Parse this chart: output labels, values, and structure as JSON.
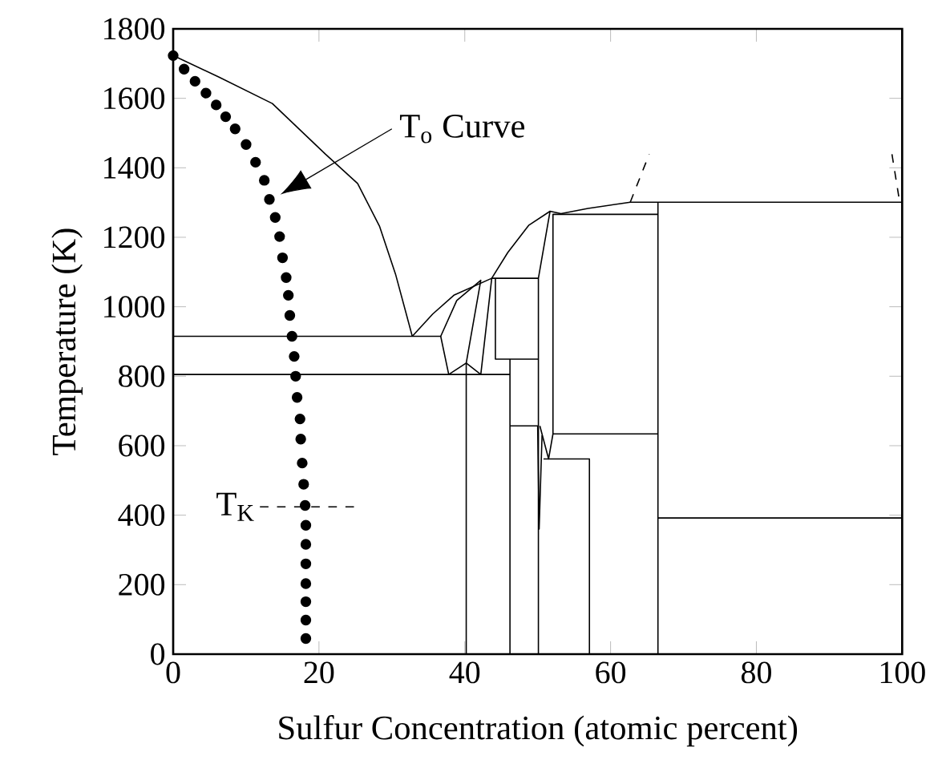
{
  "chart_data": {
    "type": "line",
    "xlabel": "Sulfur Concentration (atomic percent)",
    "ylabel": "Temperature (K)",
    "xlim": [
      0,
      100
    ],
    "ylim": [
      0,
      1800
    ],
    "xticks": [
      0,
      20,
      40,
      60,
      80,
      100
    ],
    "yticks": [
      0,
      200,
      400,
      600,
      800,
      1000,
      1200,
      1400,
      1600,
      1800
    ],
    "grid": false,
    "marker": "none",
    "line_style": "solid",
    "annotations": [
      "T$_{o}$ Curve",
      {
        "text": "T$_{K}$",
        "x": 11.9,
        "y": 424
      }
    ],
    "series": [
      {
        "color": "#000000",
        "x": [
          0,
          6.3,
          13.6,
          20.9,
          25.3,
          28.3,
          30.5,
          32.8
        ],
        "values": [
          1723,
          1661,
          1585,
          1439,
          1355,
          1232,
          1094,
          915
        ]
      },
      {
        "color": "#000000",
        "x": [
          0,
          36.7,
          37.8,
          40.2,
          42.2,
          43.7,
          45.9,
          48.8,
          51.7,
          53.2,
          56.9,
          62.7,
          100
        ],
        "values": [
          915,
          915,
          805,
          838,
          805,
          1082,
          1156,
          1235,
          1275,
          1268,
          1283,
          1301,
          1301
        ]
      },
      {
        "color": "#000000",
        "x": [
          0,
          46.2
        ],
        "values": [
          805,
          805
        ]
      },
      {
        "color": "#000000",
        "x": [
          32.8,
          35.6,
          38.5,
          43.7,
          50.1
        ],
        "values": [
          915,
          979,
          1033,
          1082,
          1082
        ]
      },
      {
        "color": "#000000",
        "x": [
          36.7,
          38.9,
          42.2,
          40.2,
          40.2
        ],
        "values": [
          915,
          1018,
          1076,
          838,
          0
        ]
      },
      {
        "color": "#000000",
        "x": [
          44.2,
          44.2,
          50.1
        ],
        "values": [
          1082,
          849,
          849
        ]
      },
      {
        "color": "#000000",
        "x": [
          46.2,
          46.2
        ],
        "values": [
          849,
          0
        ]
      },
      {
        "color": "#000000",
        "x": [
          51.7,
          50.1,
          50.1
        ],
        "values": [
          1275,
          1082,
          0
        ]
      },
      {
        "color": "#000000",
        "x": [
          66.5,
          66.5
        ],
        "values": [
          1301,
          0
        ]
      },
      {
        "color": "#000000",
        "x": [
          52.1,
          66.5
        ],
        "values": [
          634,
          634
        ]
      },
      {
        "color": "#000000",
        "x": [
          66.5,
          100
        ],
        "values": [
          392,
          392
        ]
      },
      {
        "color": "#000000",
        "x": [
          46.2,
          50.0,
          50.2,
          50.6
        ],
        "values": [
          657,
          657,
          360,
          630
        ]
      },
      {
        "color": "#000000",
        "x": [
          50.3,
          51.5,
          52.1,
          52.1,
          66.5
        ],
        "values": [
          657,
          562,
          634,
          1266,
          1266
        ]
      },
      {
        "color": "#000000",
        "x": [
          50.8,
          57.1,
          57.1
        ],
        "values": [
          562,
          562,
          0
        ]
      },
      {
        "color": "#000000",
        "line_style": "dashed",
        "x": [
          62.7,
          65.3
        ],
        "values": [
          1301,
          1439
        ]
      },
      {
        "color": "#000000",
        "line_style": "dashed",
        "x": [
          98.6,
          99.7
        ],
        "values": [
          1439,
          1296
        ]
      },
      {
        "color": "#000000",
        "line_style": "dashed",
        "x": [
          11.9,
          24.8
        ],
        "values": [
          424,
          424
        ]
      },
      {
        "color": "#000000",
        "type": "scatter",
        "marker": "circle",
        "x": [
          0,
          1.5,
          3.0,
          4.5,
          5.9,
          7.2,
          8.5,
          10.0,
          11.3,
          12.5,
          13.2,
          14.0,
          14.6,
          15.0,
          15.5,
          15.8,
          16.0,
          16.3,
          16.6,
          16.8,
          17.0,
          17.4,
          17.5,
          17.7,
          17.9,
          18.1,
          18.2,
          18.2,
          18.2,
          18.2,
          18.2,
          18.2,
          18.2
        ],
        "values": [
          1723,
          1684,
          1649,
          1615,
          1581,
          1547,
          1512,
          1467,
          1416,
          1364,
          1309,
          1257,
          1202,
          1141,
          1084,
          1033,
          975,
          915,
          857,
          800,
          739,
          677,
          619,
          550,
          489,
          428,
          371,
          316,
          260,
          203,
          151,
          98,
          45
        ]
      }
    ]
  }
}
